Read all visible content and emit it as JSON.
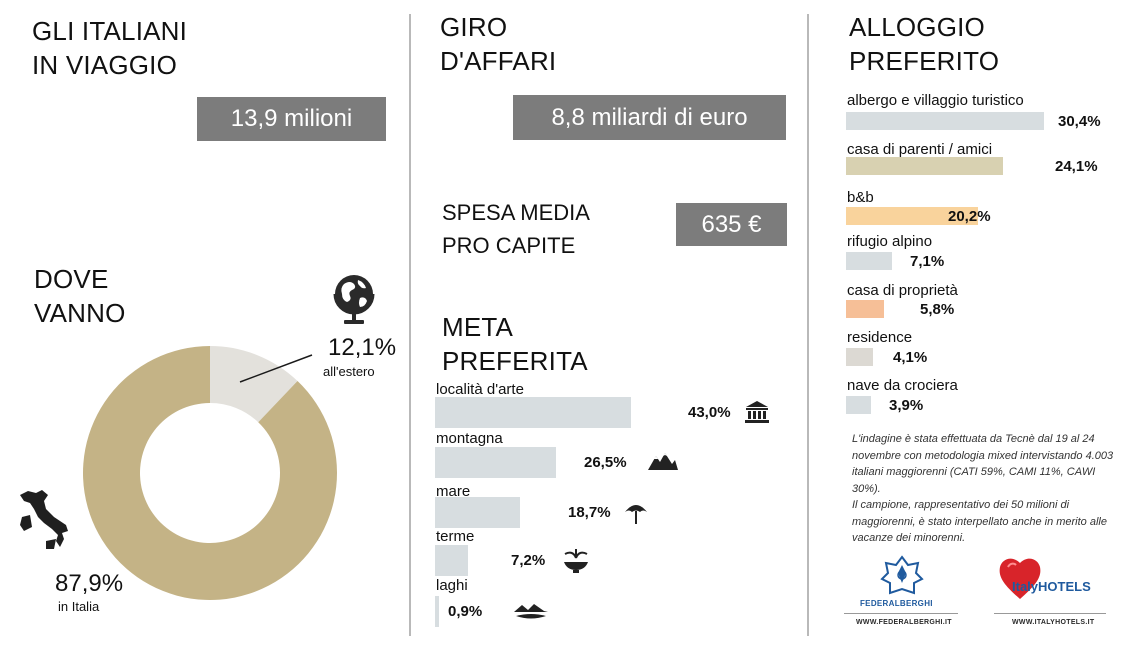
{
  "section1": {
    "title_line1": "GLI ITALIANI",
    "title_line2": "IN VIAGGIO",
    "travelers": "13,9 milioni"
  },
  "section2": {
    "title_line1": "DOVE",
    "title_line2": "VANNO",
    "abroad_pct": "12,1%",
    "abroad_label": "all'estero",
    "italy_pct": "87,9%",
    "italy_label": "in Italia"
  },
  "section3": {
    "title_line1": "GIRO",
    "title_line2": "D'AFFARI",
    "turnover": "8,8 miliardi di euro",
    "spend_line1": "SPESA MEDIA",
    "spend_line2": "PRO CAPITE",
    "spend_value": "635 €"
  },
  "section4": {
    "title_line1": "META",
    "title_line2": "PREFERITA"
  },
  "section5": {
    "title_line1": "ALLOGGIO",
    "title_line2": "PREFERITO"
  },
  "note": {
    "p1": "L'indagine è stata effettuata da Tecnè dal 19 al 24 novembre con metodologia mixed intervistando 4.003 italiani maggiorenni (CATI 59%, CAMI 11%, CAWI 30%).",
    "p2": "Il campione, rappresentativo dei 50 milioni di maggiorenni, è stato interpellato anche in merito alle vacanze dei minorenni."
  },
  "logos": {
    "federalberghi_name": "FEDERALBERGHI",
    "federalberghi_url": "WWW.FEDERALBERGHI.IT",
    "italyhotels_name": "ItalyHOTELS",
    "italyhotels_url": "WWW.ITALYHOTELS.IT"
  },
  "colors": {
    "gold": "#c4b386",
    "light_gray": "#e3e1dc",
    "bar_gray": "#d7dde0",
    "box_gray": "#7c7c7c",
    "beige": "#d8d1b1",
    "peach_light": "#f9d39c",
    "peach": "#f6bf97",
    "icon": "#222222"
  },
  "chart_data": [
    {
      "type": "pie",
      "categories": [
        "all'estero",
        "in Italia"
      ],
      "values": [
        12.1,
        87.9
      ],
      "value_labels": [
        "12,1%",
        "87,9%"
      ],
      "colors": [
        "#e3e1dc",
        "#c4b386"
      ],
      "icons": [
        "globe-icon",
        "italy-map-icon"
      ]
    },
    {
      "type": "bar",
      "orientation": "horizontal",
      "categories": [
        "località d'arte",
        "montagna",
        "mare",
        "terme",
        "laghi"
      ],
      "values": [
        43.0,
        26.5,
        18.7,
        7.2,
        0.9
      ],
      "value_labels": [
        "43,0%",
        "26,5%",
        "18,7%",
        "7,2%",
        "0,9%"
      ],
      "icons": [
        "temple-icon",
        "mountains-icon",
        "beach-umbrella-icon",
        "fountain-icon",
        "lake-icon"
      ],
      "bar_color": "#d7dde0"
    },
    {
      "type": "bar",
      "orientation": "horizontal",
      "categories": [
        "albergo e villaggio turistico",
        "casa di parenti / amici",
        "b&b",
        "rifugio alpino",
        "casa di proprietà",
        "residence",
        "nave da crociera"
      ],
      "values": [
        30.4,
        24.1,
        20.2,
        7.1,
        5.8,
        4.1,
        3.9
      ],
      "value_labels": [
        "30,4%",
        "24,1%",
        "20,2%",
        "7,1%",
        "5,8%",
        "4,1%",
        "3,9%"
      ],
      "colors": [
        "#d7dde0",
        "#d8d1b1",
        "#f9d39c",
        "#d7dde0",
        "#f6bf97",
        "#dcd9d3",
        "#d7dde0"
      ]
    }
  ]
}
